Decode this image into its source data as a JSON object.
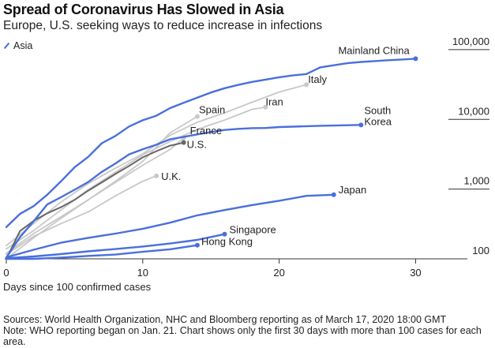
{
  "header": {
    "title": "Spread of Coronavirus Has Slowed in Asia",
    "subtitle": "Europe, U.S. seeking ways to reduce increase in infections"
  },
  "legend": {
    "label": "Asia",
    "color": "#4A6FDB"
  },
  "footer": {
    "sources": "Sources: World Health Organization, NHC and Bloomberg reporting as of March 17, 2020 18:00 GMT",
    "note": "Note: WHO reporting began on Jan. 21. Chart shows only the first 30 days with more than 100 cases for each area."
  },
  "chart_data": {
    "type": "line",
    "title": "Spread of Coronavirus Has Slowed in Asia",
    "subtitle": "Europe, U.S. seeking ways to reduce increase in infections",
    "xlabel": "Days since 100 confirmed cases",
    "ylabel": "",
    "y_scale": "log",
    "xlim": [
      0,
      32
    ],
    "ylim": [
      100,
      140000
    ],
    "x_ticks": [
      0,
      10,
      20,
      30
    ],
    "x_tick_labels": [
      "0",
      "10",
      "20",
      "30"
    ],
    "y_ticks": [
      100,
      1000,
      10000,
      100000
    ],
    "y_tick_labels": [
      "100",
      "1,000",
      "10,000",
      "100,000"
    ],
    "grid": false,
    "legend_position": "top-left",
    "colors": {
      "asia": "#4A6FDB",
      "other": "#C8C8C8",
      "us": "#666666"
    },
    "series": [
      {
        "name": "Mainland China",
        "group": "asia",
        "x": [
          0,
          1,
          2,
          3,
          4,
          5,
          6,
          7,
          8,
          9,
          10,
          11,
          12,
          13,
          14,
          15,
          16,
          17,
          18,
          19,
          20,
          21,
          22,
          23,
          24,
          25,
          26,
          27,
          28,
          29,
          30
        ],
        "y": [
          285,
          440,
          570,
          830,
          1290,
          2050,
          2900,
          4550,
          5800,
          7900,
          9700,
          11300,
          14500,
          17300,
          20500,
          24300,
          28000,
          31200,
          34500,
          37200,
          40200,
          42700,
          44700,
          55600,
          59700,
          63900,
          66600,
          68500,
          70500,
          72300,
          74200
        ]
      },
      {
        "name": "South Korea",
        "group": "asia",
        "x": [
          0,
          1,
          2,
          3,
          4,
          5,
          6,
          7,
          8,
          9,
          10,
          11,
          12,
          13,
          14,
          15,
          16,
          17,
          18,
          19,
          20,
          21,
          22,
          23,
          24,
          25,
          26
        ],
        "y": [
          104,
          204,
          346,
          602,
          763,
          977,
          1261,
          1766,
          2337,
          3150,
          3736,
          4335,
          5186,
          5621,
          6088,
          6593,
          7041,
          7314,
          7478,
          7513,
          7755,
          7869,
          7979,
          8086,
          8162,
          8236,
          8320
        ]
      },
      {
        "name": "Japan",
        "group": "asia",
        "x": [
          0,
          2,
          4,
          6,
          8,
          10,
          12,
          14,
          16,
          18,
          20,
          22,
          24
        ],
        "y": [
          105,
          135,
          170,
          200,
          230,
          270,
          330,
          420,
          500,
          590,
          680,
          800,
          830
        ]
      },
      {
        "name": "Singapore",
        "group": "asia",
        "x": [
          0,
          2,
          4,
          6,
          8,
          10,
          12,
          14,
          16
        ],
        "y": [
          102,
          108,
          117,
          128,
          138,
          150,
          166,
          187,
          226
        ]
      },
      {
        "name": "Hong Kong",
        "group": "asia",
        "x": [
          0,
          2,
          4,
          6,
          8,
          10,
          12,
          14
        ],
        "y": [
          100,
          100,
          104,
          110,
          115,
          126,
          137,
          157
        ]
      },
      {
        "name": "Italy",
        "group": "other",
        "x": [
          0,
          2,
          4,
          6,
          8,
          10,
          12,
          14,
          16,
          18,
          20,
          22
        ],
        "y": [
          155,
          320,
          650,
          1200,
          2000,
          3200,
          5900,
          9100,
          12400,
          17600,
          24700,
          31500
        ]
      },
      {
        "name": "Iran",
        "group": "other",
        "x": [
          0,
          2,
          4,
          6,
          8,
          10,
          12,
          14,
          16,
          18,
          19
        ],
        "y": [
          139,
          254,
          500,
          980,
          1750,
          3100,
          4800,
          7200,
          9800,
          13900,
          14990
        ]
      },
      {
        "name": "Spain",
        "group": "other",
        "x": [
          0,
          2,
          4,
          6,
          8,
          10,
          12,
          14
        ],
        "y": [
          120,
          230,
          400,
          700,
          1300,
          2500,
          6400,
          11000
        ]
      },
      {
        "name": "France",
        "group": "other",
        "x": [
          0,
          2,
          4,
          6,
          8,
          10,
          12,
          13
        ],
        "y": [
          100,
          200,
          380,
          700,
          1250,
          2200,
          3700,
          5400
        ]
      },
      {
        "name": "U.S.",
        "group": "us",
        "x": [
          0,
          1,
          2,
          3,
          4,
          5,
          6,
          7,
          8,
          9,
          10,
          11,
          12,
          13
        ],
        "y": [
          100,
          250,
          350,
          450,
          550,
          700,
          950,
          1250,
          1650,
          2150,
          2850,
          3500,
          4200,
          4650
        ]
      },
      {
        "name": "U.K.",
        "group": "other",
        "x": [
          0,
          2,
          4,
          6,
          8,
          10,
          11
        ],
        "y": [
          115,
          210,
          320,
          470,
          800,
          1300,
          1550
        ]
      }
    ]
  }
}
